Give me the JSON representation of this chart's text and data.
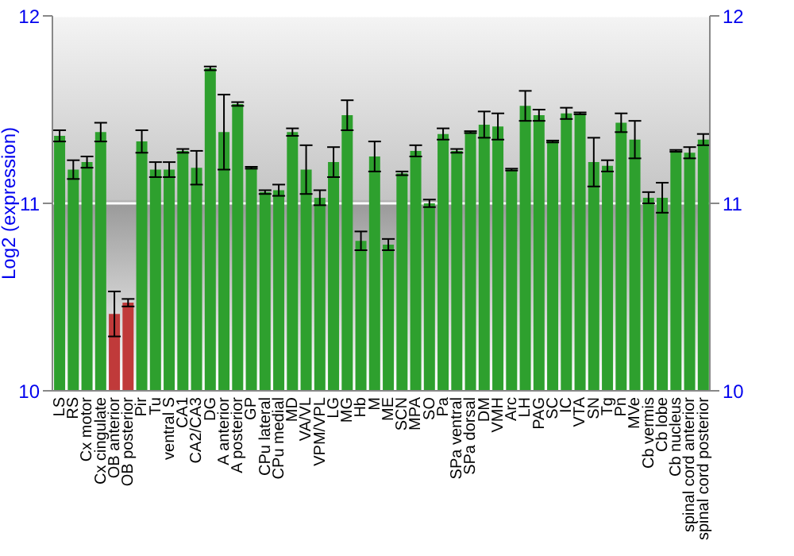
{
  "chart_data": {
    "type": "bar",
    "ylabel": "Log2 (expression)",
    "categories": [
      "LS",
      "RS",
      "Cx motor",
      "Cx cingulate",
      "OB anterior",
      "OB posterior",
      "Pir",
      "Tu",
      "ventral S",
      "CA1",
      "CA2/CA3",
      "DG",
      "A anterior",
      "A posterior",
      "GP",
      "CPu lateral",
      "CPu medial",
      "MD",
      "VA/VL",
      "VPM/VPL",
      "LG",
      "MG",
      "Hb",
      "M",
      "ME",
      "SCN",
      "MPA",
      "SO",
      "Pa",
      "SPa ventral",
      "SPa dorsal",
      "DM",
      "VMH",
      "Arc",
      "LH",
      "PAG",
      "SC",
      "IC",
      "VTA",
      "SN",
      "Tg",
      "Pn",
      "MVe",
      "Cb vermis",
      "Cb lobe",
      "Cb nucleus",
      "spinal cord anterior",
      "spinal cord posterior"
    ],
    "values": [
      11.36,
      11.18,
      11.22,
      11.38,
      10.41,
      10.47,
      11.33,
      11.18,
      11.18,
      11.28,
      11.19,
      11.72,
      11.38,
      11.53,
      11.19,
      11.06,
      11.07,
      11.38,
      11.18,
      11.03,
      11.22,
      11.47,
      10.8,
      11.25,
      10.78,
      11.16,
      11.28,
      11.0,
      11.37,
      11.28,
      11.38,
      11.42,
      11.41,
      11.18,
      11.52,
      11.47,
      11.33,
      11.48,
      11.48,
      11.22,
      11.2,
      11.43,
      11.34,
      11.03,
      11.03,
      11.28,
      11.27,
      11.34
    ],
    "errors": [
      0.03,
      0.05,
      0.03,
      0.05,
      0.12,
      0.02,
      0.06,
      0.04,
      0.04,
      0.01,
      0.09,
      0.01,
      0.2,
      0.01,
      0.005,
      0.01,
      0.03,
      0.02,
      0.13,
      0.04,
      0.08,
      0.08,
      0.05,
      0.08,
      0.03,
      0.01,
      0.03,
      0.02,
      0.03,
      0.01,
      0.005,
      0.07,
      0.07,
      0.005,
      0.08,
      0.03,
      0.005,
      0.03,
      0.005,
      0.13,
      0.03,
      0.05,
      0.1,
      0.03,
      0.08,
      0.005,
      0.03,
      0.03
    ],
    "colors": [
      "#2ea02e",
      "#2ea02e",
      "#2ea02e",
      "#2ea02e",
      "#c03a3a",
      "#c03a3a",
      "#2ea02e",
      "#2ea02e",
      "#2ea02e",
      "#2ea02e",
      "#2ea02e",
      "#2ea02e",
      "#2ea02e",
      "#2ea02e",
      "#2ea02e",
      "#2ea02e",
      "#2ea02e",
      "#2ea02e",
      "#2ea02e",
      "#2ea02e",
      "#2ea02e",
      "#2ea02e",
      "#2ea02e",
      "#2ea02e",
      "#2ea02e",
      "#2ea02e",
      "#2ea02e",
      "#2ea02e",
      "#2ea02e",
      "#2ea02e",
      "#2ea02e",
      "#2ea02e",
      "#2ea02e",
      "#2ea02e",
      "#2ea02e",
      "#2ea02e",
      "#2ea02e",
      "#2ea02e",
      "#2ea02e",
      "#2ea02e",
      "#2ea02e",
      "#2ea02e",
      "#2ea02e",
      "#2ea02e",
      "#2ea02e",
      "#2ea02e",
      "#2ea02e",
      "#2ea02e"
    ],
    "ylim": [
      10,
      12
    ],
    "yticks": [
      10,
      11,
      12
    ],
    "y2lim": [
      10,
      12
    ],
    "y2ticks": [
      10,
      11,
      12
    ],
    "grid": "y"
  }
}
